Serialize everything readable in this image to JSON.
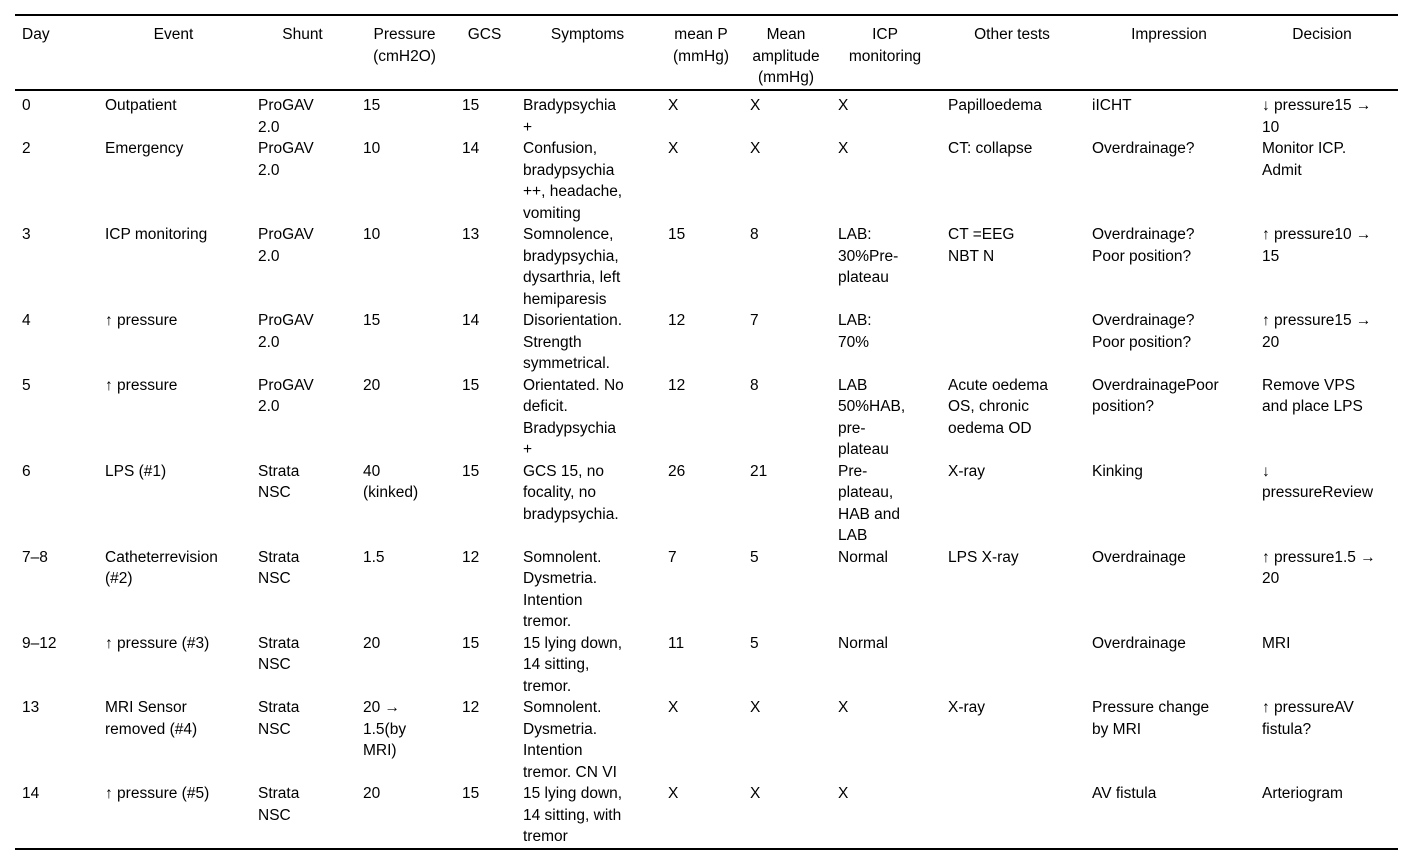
{
  "page": {
    "background": "#ffffff",
    "text_color": "#000000",
    "rule_color": "#000000"
  },
  "table": {
    "columns": [
      {
        "key": "day",
        "label": "Day"
      },
      {
        "key": "event",
        "label": "Event"
      },
      {
        "key": "shunt",
        "label": "Shunt"
      },
      {
        "key": "pressure",
        "label": "Pressure\n(cmH2O)"
      },
      {
        "key": "gcs",
        "label": "GCS"
      },
      {
        "key": "symptoms",
        "label": "Symptoms"
      },
      {
        "key": "mean-p",
        "label": "mean P\n(mmHg)"
      },
      {
        "key": "mean-amplitude",
        "label": "Mean\namplitude\n(mmHg)"
      },
      {
        "key": "icp-monitoring",
        "label": "ICP\nmonitoring"
      },
      {
        "key": "other-tests",
        "label": "Other tests"
      },
      {
        "key": "impression",
        "label": "Impression"
      },
      {
        "key": "decision",
        "label": "Decision"
      }
    ],
    "rows": [
      [
        "0",
        "Outpatient",
        "ProGAV\n2.0",
        "15",
        "15",
        "Bradypsychia\n+",
        "X",
        "X",
        "X",
        "Papilloedema",
        "iICHT",
        "↓ pressure15 →\n10"
      ],
      [
        "2",
        "Emergency",
        "ProGAV\n2.0",
        "10",
        "14",
        "Confusion,\nbradypsychia\n++, headache,\nvomiting",
        "X",
        "X",
        "X",
        "CT: collapse",
        "Overdrainage?",
        "Monitor ICP.\nAdmit"
      ],
      [
        "3",
        "ICP monitoring",
        "ProGAV\n2.0",
        "10",
        "13",
        "Somnolence,\nbradypsychia,\ndysarthria, left\nhemiparesis",
        "15",
        "8",
        "LAB:\n30%Pre-\nplateau",
        "CT =EEG\nNBT N",
        "Overdrainage?\nPoor position?",
        "↑ pressure10 →\n15"
      ],
      [
        "4",
        "↑ pressure",
        "ProGAV\n2.0",
        "15",
        "14",
        "Disorientation.\nStrength\nsymmetrical.",
        "12",
        "7",
        "LAB:\n70%",
        "",
        "Overdrainage?\nPoor position?",
        "↑ pressure15 →\n20"
      ],
      [
        "5",
        "↑ pressure",
        "ProGAV\n2.0",
        "20",
        "15",
        "Orientated. No\ndeficit.\nBradypsychia\n+",
        "12",
        "8",
        "LAB\n50%HAB,\npre-\nplateau",
        "Acute oedema\nOS, chronic\noedema OD",
        "OverdrainagePoor\nposition?",
        "Remove VPS\nand place LPS"
      ],
      [
        "6",
        "LPS (#1)",
        "Strata\nNSC",
        "40\n(kinked)",
        "15",
        "GCS 15, no\nfocality, no\nbradypsychia.",
        "26",
        "21",
        "Pre-\nplateau,\nHAB and\nLAB",
        "X-ray",
        "Kinking",
        "↓\npressureReview"
      ],
      [
        "7–8",
        "Catheterrevision\n(#2)",
        "Strata\nNSC",
        "1.5",
        "12",
        "Somnolent.\nDysmetria.\nIntention\ntremor.",
        "7",
        "5",
        "Normal",
        "LPS X-ray",
        "Overdrainage",
        "↑ pressure1.5 →\n20"
      ],
      [
        "9–12",
        "↑ pressure (#3)",
        "Strata\nNSC",
        "20",
        "15",
        "15 lying down,\n14 sitting,\ntremor.",
        "11",
        "5",
        "Normal",
        "",
        "Overdrainage",
        "MRI"
      ],
      [
        "13",
        "MRI Sensor\nremoved (#4)",
        "Strata\nNSC",
        "20 →\n1.5(by\nMRI)",
        "12",
        "Somnolent.\nDysmetria.\nIntention\ntremor. CN VI",
        "X",
        "X",
        "X",
        "X-ray",
        "Pressure change\nby MRI",
        "↑ pressureAV\nfistula?"
      ],
      [
        "14",
        "↑ pressure (#5)",
        "Strata\nNSC",
        "20",
        "15",
        "15 lying down,\n14 sitting, with\ntremor",
        "X",
        "X",
        "X",
        "",
        "AV fistula",
        "Arteriogram"
      ]
    ]
  }
}
